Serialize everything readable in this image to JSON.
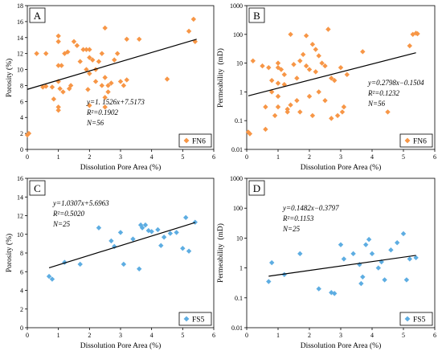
{
  "chart_data": [
    {
      "panel": "A",
      "type": "scatter",
      "ylabel": "Porosity (%)",
      "xlabel": "Dissolution Pore Area (%)",
      "xlim": [
        0,
        6
      ],
      "ylim": [
        0,
        18
      ],
      "log_y": false,
      "x_ticks": [
        "0",
        "1",
        "2",
        "3",
        "4",
        "5",
        "6"
      ],
      "y_ticks": [
        "0",
        "2",
        "4",
        "6",
        "8",
        "10",
        "12",
        "14",
        "16",
        "18"
      ],
      "equation": "y=1. 1526x+7.5173",
      "r2": "R²=0.1902",
      "n": "N=56",
      "legend": "FN6",
      "legend_position": "bottom-right",
      "trend": {
        "slope": 1.1526,
        "intercept": 7.5173,
        "x_range": [
          0,
          5.45
        ]
      },
      "marker_color": "#F79646",
      "marker": "diamond",
      "points": [
        [
          0,
          1.8
        ],
        [
          0.05,
          2.0
        ],
        [
          0.3,
          12.0
        ],
        [
          0.5,
          7.8
        ],
        [
          0.6,
          7.9
        ],
        [
          0.6,
          12.0
        ],
        [
          0.8,
          7.8
        ],
        [
          0.85,
          6.3
        ],
        [
          1.0,
          14.2
        ],
        [
          1.0,
          13.5
        ],
        [
          1.0,
          10.5
        ],
        [
          1.0,
          8.5
        ],
        [
          1.0,
          5.3
        ],
        [
          1.0,
          4.9
        ],
        [
          1.05,
          7.6
        ],
        [
          1.1,
          10.5
        ],
        [
          1.15,
          7.2
        ],
        [
          1.2,
          12.0
        ],
        [
          1.3,
          12.2
        ],
        [
          1.35,
          7.6
        ],
        [
          1.4,
          8.0
        ],
        [
          1.5,
          13.5
        ],
        [
          1.6,
          13.0
        ],
        [
          1.7,
          11.0
        ],
        [
          1.8,
          12.5
        ],
        [
          1.9,
          12.5
        ],
        [
          1.9,
          10.0
        ],
        [
          1.95,
          7.5
        ],
        [
          2.0,
          12.5
        ],
        [
          2.0,
          11.5
        ],
        [
          2.0,
          9.5
        ],
        [
          2.0,
          5.5
        ],
        [
          2.1,
          11.2
        ],
        [
          2.2,
          10.0
        ],
        [
          2.2,
          8.5
        ],
        [
          2.3,
          11.0
        ],
        [
          2.4,
          12.0
        ],
        [
          2.4,
          8.0
        ],
        [
          2.5,
          15.2
        ],
        [
          2.5,
          9.0
        ],
        [
          2.5,
          6.5
        ],
        [
          2.5,
          5.3
        ],
        [
          2.6,
          8.0
        ],
        [
          2.6,
          7.2
        ],
        [
          2.7,
          8.3
        ],
        [
          2.8,
          11.2
        ],
        [
          2.9,
          12.0
        ],
        [
          3.0,
          8.5
        ],
        [
          3.1,
          8.0
        ],
        [
          3.2,
          8.7
        ],
        [
          3.2,
          13.8
        ],
        [
          3.6,
          13.8
        ],
        [
          4.5,
          8.8
        ],
        [
          5.2,
          14.8
        ],
        [
          5.35,
          16.3
        ],
        [
          5.4,
          13.5
        ]
      ]
    },
    {
      "panel": "B",
      "type": "scatter",
      "ylabel": "Permeability  (mD)",
      "xlabel": "Dissolution Pore Area (%)",
      "xlim": [
        0,
        6
      ],
      "ylim": [
        0.01,
        1000
      ],
      "log_y": true,
      "x_ticks": [
        "0",
        "1",
        "2",
        "3",
        "4",
        "5",
        "6"
      ],
      "y_ticks": [
        "0.01",
        "0.1",
        "1",
        "10",
        "100",
        "1000"
      ],
      "equation": "y=0.2798x−0.1504",
      "r2": "R²=0.1232",
      "n": "N=56",
      "legend": "FN6",
      "legend_position": "bottom-right",
      "trend": {
        "slope": 0.2798,
        "intercept": -0.1504,
        "x_range": [
          0.05,
          5.4
        ]
      },
      "marker_color": "#F79646",
      "marker": "diamond",
      "points": [
        [
          0.05,
          0.04
        ],
        [
          0.1,
          0.035
        ],
        [
          0.2,
          12.0
        ],
        [
          0.5,
          8.0
        ],
        [
          0.6,
          0.05
        ],
        [
          0.6,
          0.3
        ],
        [
          0.7,
          7.0
        ],
        [
          0.8,
          1.0
        ],
        [
          0.8,
          2.5
        ],
        [
          0.9,
          0.15
        ],
        [
          1.0,
          10.0
        ],
        [
          1.0,
          7.0
        ],
        [
          1.0,
          2.0
        ],
        [
          1.0,
          0.7
        ],
        [
          1.0,
          0.3
        ],
        [
          1.1,
          6.0
        ],
        [
          1.2,
          4.0
        ],
        [
          1.2,
          1.8
        ],
        [
          1.3,
          0.2
        ],
        [
          1.4,
          0.35
        ],
        [
          1.4,
          100.0
        ],
        [
          1.5,
          9.0
        ],
        [
          1.6,
          3.0
        ],
        [
          1.6,
          0.5
        ],
        [
          1.7,
          12.0
        ],
        [
          1.7,
          0.2
        ],
        [
          1.8,
          20.0
        ],
        [
          1.9,
          8.0
        ],
        [
          1.9,
          90.0
        ],
        [
          2.0,
          0.7
        ],
        [
          2.0,
          6.0
        ],
        [
          2.1,
          45.0
        ],
        [
          2.1,
          0.15
        ],
        [
          2.2,
          5.0
        ],
        [
          2.2,
          30.0
        ],
        [
          2.3,
          18.0
        ],
        [
          2.3,
          1.0
        ],
        [
          2.4,
          10.0
        ],
        [
          2.5,
          8.0
        ],
        [
          2.5,
          0.5
        ],
        [
          2.6,
          150.0
        ],
        [
          2.7,
          3.0
        ],
        [
          2.8,
          2.5
        ],
        [
          2.9,
          0.15
        ],
        [
          3.0,
          7.0
        ],
        [
          3.05,
          0.2
        ],
        [
          3.1,
          0.3
        ],
        [
          3.2,
          4.0
        ],
        [
          3.7,
          25.0
        ],
        [
          4.5,
          0.2
        ],
        [
          5.2,
          40.0
        ],
        [
          5.3,
          100.0
        ],
        [
          5.4,
          110.0
        ],
        [
          5.45,
          105.0
        ],
        [
          2.7,
          0.12
        ],
        [
          1.3,
          0.25
        ]
      ]
    },
    {
      "panel": "C",
      "type": "scatter",
      "ylabel": "Porosity (%)",
      "xlabel": "Dissolution Pore Area (%)",
      "xlim": [
        0,
        6
      ],
      "ylim": [
        0,
        16
      ],
      "log_y": false,
      "x_ticks": [
        "0",
        "1",
        "2",
        "3",
        "4",
        "5",
        "6"
      ],
      "y_ticks": [
        "0",
        "2",
        "4",
        "6",
        "8",
        "10",
        "12",
        "14",
        "16"
      ],
      "equation": "y=1.0307x+5.6963",
      "r2": "R²=0.5020",
      "n": "N=25",
      "legend": "FS5",
      "legend_position": "bottom-right",
      "trend": {
        "slope": 1.0307,
        "intercept": 5.6963,
        "x_range": [
          0.7,
          5.4
        ]
      },
      "marker_color": "#5DADE2",
      "marker": "diamond",
      "points": [
        [
          0.7,
          5.5
        ],
        [
          0.8,
          5.2
        ],
        [
          1.2,
          7.0
        ],
        [
          1.7,
          6.8
        ],
        [
          2.3,
          10.7
        ],
        [
          2.7,
          9.3
        ],
        [
          2.8,
          8.7
        ],
        [
          3.0,
          10.2
        ],
        [
          3.1,
          6.8
        ],
        [
          3.4,
          9.5
        ],
        [
          3.6,
          6.3
        ],
        [
          3.65,
          11.0
        ],
        [
          3.7,
          10.7
        ],
        [
          3.8,
          11.0
        ],
        [
          3.9,
          10.4
        ],
        [
          4.0,
          10.3
        ],
        [
          4.2,
          10.5
        ],
        [
          4.3,
          8.8
        ],
        [
          4.4,
          9.7
        ],
        [
          4.6,
          10.1
        ],
        [
          4.8,
          10.2
        ],
        [
          5.0,
          8.5
        ],
        [
          5.1,
          11.8
        ],
        [
          5.2,
          8.2
        ],
        [
          5.4,
          11.3
        ]
      ]
    },
    {
      "panel": "D",
      "type": "scatter",
      "ylabel": "Permeability  (mD)",
      "xlabel": "Dissolution Pore Area (%)",
      "xlim": [
        0,
        6
      ],
      "ylim": [
        0.01,
        1000
      ],
      "log_y": true,
      "x_ticks": [
        "0",
        "1",
        "2",
        "3",
        "4",
        "5",
        "6"
      ],
      "y_ticks": [
        "0.01",
        "0.1",
        "1",
        "10",
        "100",
        "1000"
      ],
      "equation": "y=0.1482x−0.3797",
      "r2": "R²=0.1153",
      "n": "N=25",
      "legend": "FS5",
      "legend_position": "bottom-right",
      "trend": {
        "slope": 0.1482,
        "intercept": -0.3797,
        "x_range": [
          0.7,
          5.4
        ]
      },
      "marker_color": "#5DADE2",
      "marker": "diamond",
      "points": [
        [
          0.7,
          0.35
        ],
        [
          0.8,
          1.5
        ],
        [
          1.2,
          0.6
        ],
        [
          1.7,
          3.0
        ],
        [
          2.3,
          0.2
        ],
        [
          2.7,
          0.15
        ],
        [
          2.8,
          0.14
        ],
        [
          3.0,
          6.0
        ],
        [
          3.1,
          2.0
        ],
        [
          3.4,
          3.0
        ],
        [
          3.6,
          1.3
        ],
        [
          3.65,
          0.3
        ],
        [
          3.7,
          0.5
        ],
        [
          3.8,
          6.0
        ],
        [
          3.9,
          9.0
        ],
        [
          4.0,
          3.0
        ],
        [
          4.2,
          1.0
        ],
        [
          4.3,
          1.6
        ],
        [
          4.4,
          0.4
        ],
        [
          4.6,
          4.0
        ],
        [
          4.8,
          7.0
        ],
        [
          5.0,
          14.0
        ],
        [
          5.1,
          0.4
        ],
        [
          5.2,
          2.0
        ],
        [
          5.4,
          2.2
        ]
      ]
    }
  ]
}
